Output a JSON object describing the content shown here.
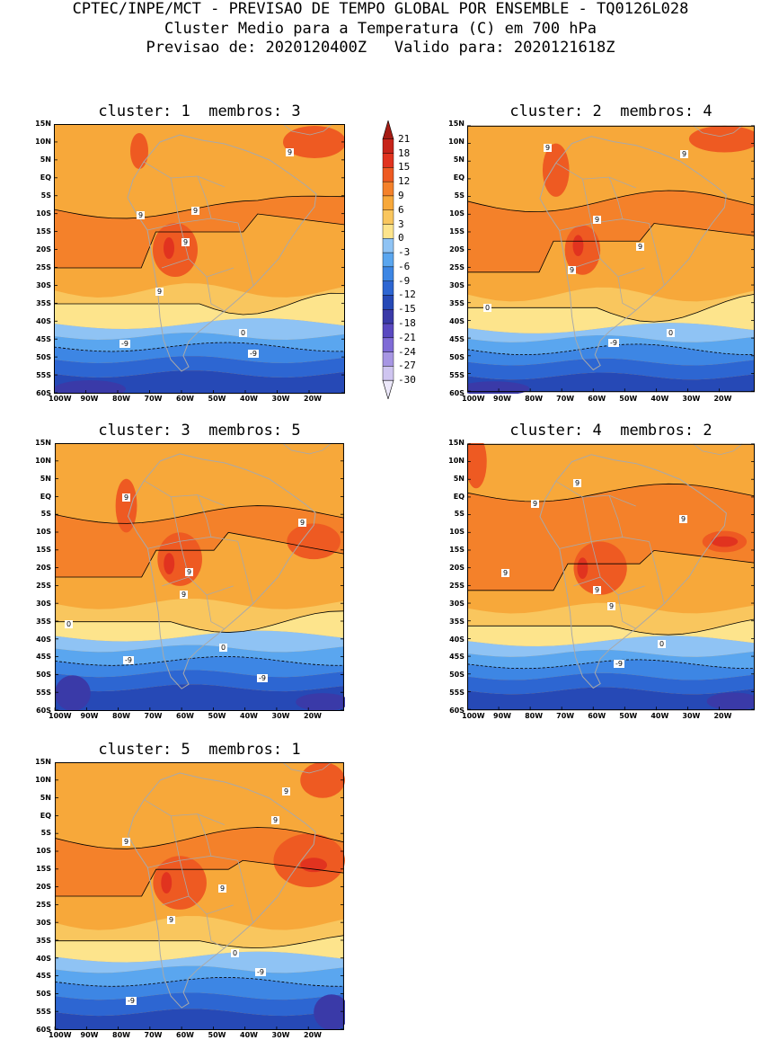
{
  "header": {
    "line1": "CPTEC/INPE/MCT - PREVISAO DE TEMPO GLOBAL POR ENSEMBLE - TQ0126L028",
    "line2": "Cluster Medio para a Temperatura (C) em 700 hPa",
    "line3": "Previsao de: 2020120400Z   Valido para: 2020121618Z"
  },
  "panels": [
    {
      "title": "cluster: 1  membros: 3"
    },
    {
      "title": "cluster: 2  membros: 4"
    },
    {
      "title": "cluster: 3  membros: 5"
    },
    {
      "title": "cluster: 4  membros: 2"
    },
    {
      "title": "cluster: 5  membros: 1"
    }
  ],
  "axis": {
    "lat_labels": [
      "15N",
      "10N",
      "5N",
      "EQ",
      "5S",
      "10S",
      "15S",
      "20S",
      "25S",
      "30S",
      "35S",
      "40S",
      "45S",
      "50S",
      "55S",
      "60S"
    ],
    "lon_labels": [
      "100W",
      "90W",
      "80W",
      "70W",
      "60W",
      "50W",
      "40W",
      "30W",
      "20W"
    ]
  },
  "colorbar": {
    "labels": [
      "21",
      "18",
      "15",
      "12",
      "9",
      "6",
      "3",
      "0",
      "-3",
      "-6",
      "-9",
      "-12",
      "-15",
      "-18",
      "-21",
      "-24",
      "-27",
      "-30"
    ],
    "colors": [
      "#a51b14",
      "#c7241a",
      "#e1331f",
      "#ee5a22",
      "#f4812a",
      "#f7a83a",
      "#f9c65e",
      "#fde48c",
      "#8fc3f4",
      "#5aa6ef",
      "#3d86e4",
      "#2d66d2",
      "#2649b6",
      "#3a3aa8",
      "#5a49c0",
      "#7f6bd6",
      "#a796e3",
      "#cfc5f0",
      "#ece8fa"
    ],
    "level_colors": {
      "lt_m27": "#cfc5f0",
      "m27_m24": "#a796e3",
      "m24_m21": "#7f6bd6",
      "m21_m18": "#5a49c0",
      "m18_m15": "#3a3aa8",
      "m15_m12": "#2649b6",
      "m12_m9": "#2d66d2",
      "m9_m6": "#3d86e4",
      "m6_m3": "#5aa6ef",
      "m3_0": "#8fc3f4",
      "0_3": "#fde48c",
      "3_6": "#f9c65e",
      "6_9": "#f7a83a",
      "9_12": "#f4812a",
      "12_15": "#ee5a22",
      "15_18": "#e1331f"
    }
  },
  "contour_labels": {
    "p1": [
      "9",
      "9",
      "9",
      "9",
      "9",
      "0",
      "-9",
      "-9"
    ],
    "p2": [
      "9",
      "9",
      "9",
      "9",
      "9",
      "0",
      "0",
      "-9"
    ],
    "p3": [
      "9",
      "9",
      "9",
      "9",
      "0",
      "0",
      "-9",
      "-9"
    ],
    "p4": [
      "9",
      "9",
      "9",
      "9",
      "9",
      "9",
      "0",
      "-9"
    ],
    "p5": [
      "9",
      "9",
      "9",
      "9",
      "9",
      "0",
      "-9",
      "-9"
    ]
  }
}
